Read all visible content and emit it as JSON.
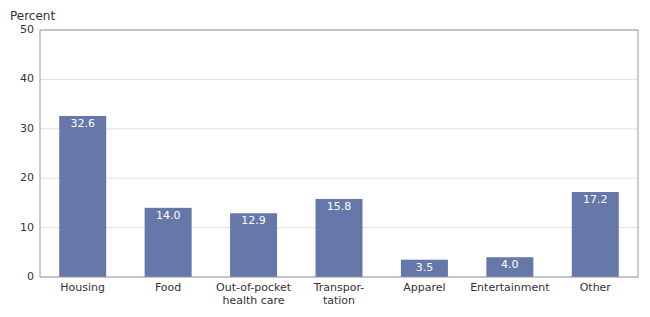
{
  "chart_data": {
    "type": "bar",
    "ylabel": "Percent",
    "categories": [
      "Housing",
      "Food",
      "Out-of-pocket\nhealth care",
      "Transpor-\ntation",
      "Apparel",
      "Entertainment",
      "Other"
    ],
    "values": [
      32.6,
      14.0,
      12.9,
      15.8,
      3.5,
      4.0,
      17.2
    ],
    "value_labels": [
      "32.6",
      "14.0",
      "12.9",
      "15.8",
      "3.5",
      "4.0",
      "17.2"
    ],
    "color": "#6677aa",
    "ylim": [
      0,
      50
    ],
    "yticks": [
      0,
      10,
      20,
      30,
      40,
      50
    ],
    "grid": true,
    "data_labels": true
  }
}
